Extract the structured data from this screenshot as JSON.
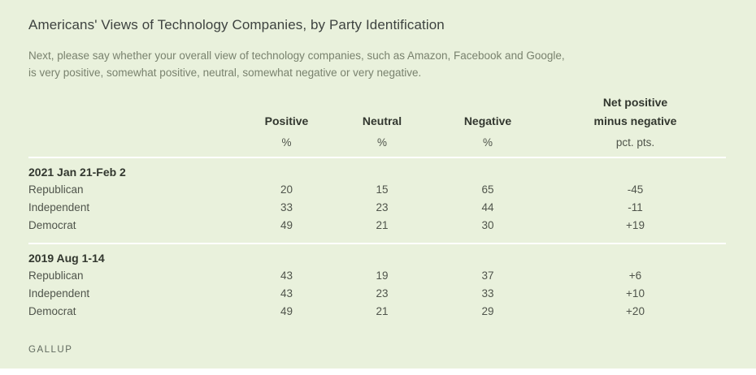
{
  "colors": {
    "background": "#e9f1dc",
    "divider": "#ffffff",
    "heading_text": "#32372f",
    "title_text": "#3e4340",
    "subtitle_text": "#79826e",
    "body_text": "#4f544b",
    "brand_text": "#616a5f"
  },
  "title": "Americans' Views of Technology Companies, by Party Identification",
  "subtitle_line1": "Next, please say whether your overall view of technology companies, such as Amazon, Facebook and Google,",
  "subtitle_line2": "is very positive, somewhat positive, neutral, somewhat negative or very negative.",
  "table": {
    "net_header_line1": "Net positive",
    "net_header_line2": "minus negative",
    "columns": [
      "Positive",
      "Neutral",
      "Negative"
    ],
    "units": {
      "pct": "%",
      "net": "pct. pts."
    },
    "sections": [
      {
        "date": "2021 Jan 21-Feb 2",
        "rows": [
          {
            "label": "Republican",
            "positive": "20",
            "neutral": "15",
            "negative": "65",
            "net": "-45"
          },
          {
            "label": "Independent",
            "positive": "33",
            "neutral": "23",
            "negative": "44",
            "net": "-11"
          },
          {
            "label": "Democrat",
            "positive": "49",
            "neutral": "21",
            "negative": "30",
            "net": "+19"
          }
        ]
      },
      {
        "date": "2019 Aug 1-14",
        "rows": [
          {
            "label": "Republican",
            "positive": "43",
            "neutral": "19",
            "negative": "37",
            "net": "+6"
          },
          {
            "label": "Independent",
            "positive": "43",
            "neutral": "23",
            "negative": "33",
            "net": "+10"
          },
          {
            "label": "Democrat",
            "positive": "49",
            "neutral": "21",
            "negative": "29",
            "net": "+20"
          }
        ]
      }
    ]
  },
  "footer": {
    "brand": "GALLUP"
  },
  "chart_data": {
    "type": "table",
    "title": "Americans' Views of Technology Companies, by Party Identification",
    "subtitle": "Next, please say whether your overall view of technology companies, such as Amazon, Facebook and Google, is very positive, somewhat positive, neutral, somewhat negative or very negative.",
    "columns": [
      "Party",
      "Positive %",
      "Neutral %",
      "Negative %",
      "Net positive minus negative (pct. pts.)"
    ],
    "sections": [
      {
        "period": "2021 Jan 21-Feb 2",
        "rows": [
          [
            "Republican",
            20,
            15,
            65,
            -45
          ],
          [
            "Independent",
            33,
            23,
            44,
            -11
          ],
          [
            "Democrat",
            49,
            21,
            30,
            19
          ]
        ]
      },
      {
        "period": "2019 Aug 1-14",
        "rows": [
          [
            "Republican",
            43,
            19,
            37,
            6
          ],
          [
            "Independent",
            43,
            23,
            33,
            10
          ],
          [
            "Democrat",
            49,
            21,
            29,
            20
          ]
        ]
      }
    ],
    "source": "GALLUP"
  }
}
